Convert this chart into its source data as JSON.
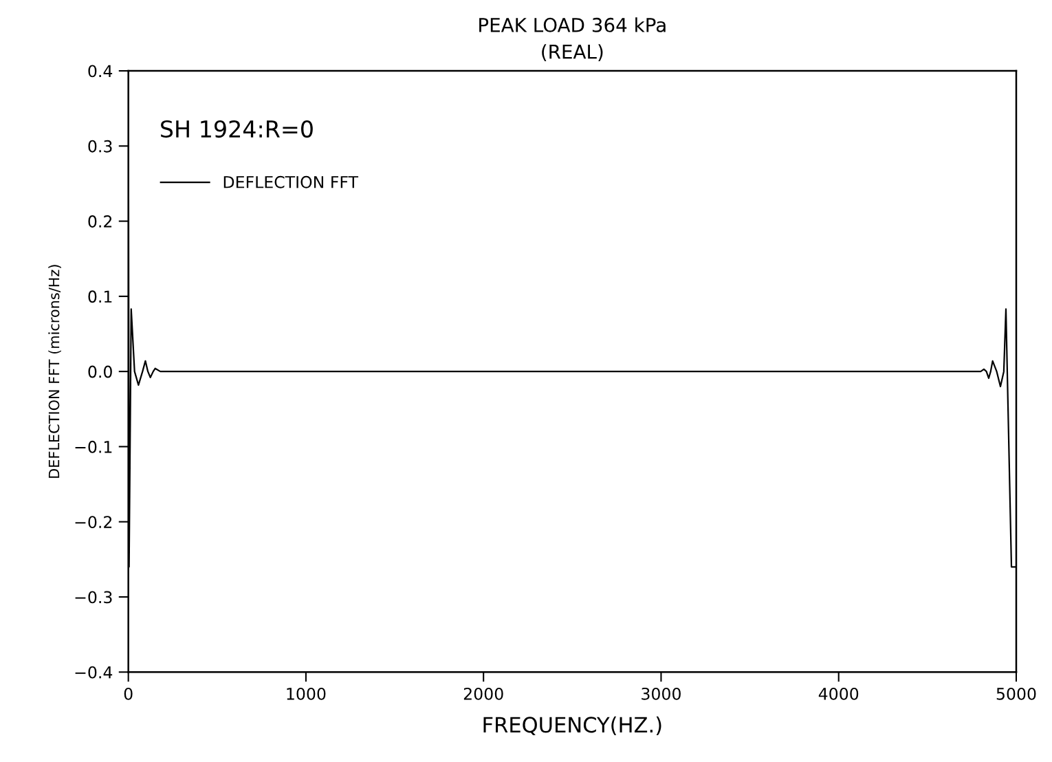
{
  "chart_data": {
    "type": "line",
    "title": "PEAK LOAD 364 kPa",
    "subtitle": "(REAL)",
    "xlabel": "FREQUENCY(HZ.)",
    "ylabel": "DEFLECTION FFT (microns/Hz)",
    "annotations": [
      "SH 1924:R=0"
    ],
    "series": [
      {
        "name": "DEFLECTION FFT",
        "color": "#000000",
        "x": [
          0,
          4,
          16,
          35,
          57,
          80,
          96,
          110,
          124,
          140,
          151,
          180,
          4800,
          4818,
          4832,
          4845,
          4856,
          4867,
          4890,
          4911,
          4930,
          4942,
          4973,
          5000
        ],
        "values": [
          0.4,
          -0.26,
          0.083,
          0.0,
          -0.018,
          0.0,
          0.014,
          0.0,
          -0.008,
          0.0,
          0.004,
          0.0,
          0.0,
          0.003,
          0.0,
          -0.009,
          0.0,
          0.014,
          0.0,
          -0.02,
          0.0,
          0.083,
          -0.26,
          -0.26
        ]
      }
    ],
    "xlim": [
      0,
      5000
    ],
    "xticks": [
      0,
      1000,
      2000,
      3000,
      4000,
      5000
    ],
    "ylim": [
      -0.4,
      0.4
    ],
    "yticks": [
      {
        "value": -0.4,
        "label": "−0.4"
      },
      {
        "value": -0.3,
        "label": "−0.3"
      },
      {
        "value": -0.2,
        "label": "−0.2"
      },
      {
        "value": -0.1,
        "label": "−0.1"
      },
      {
        "value": 0.0,
        "label": "0.0"
      },
      {
        "value": 0.1,
        "label": "0.1"
      },
      {
        "value": 0.2,
        "label": "0.2"
      },
      {
        "value": 0.3,
        "label": "0.3"
      },
      {
        "value": 0.4,
        "label": "0.4"
      }
    ],
    "grid": false,
    "legend": "top left",
    "marker": "none",
    "line_style": "solid"
  }
}
